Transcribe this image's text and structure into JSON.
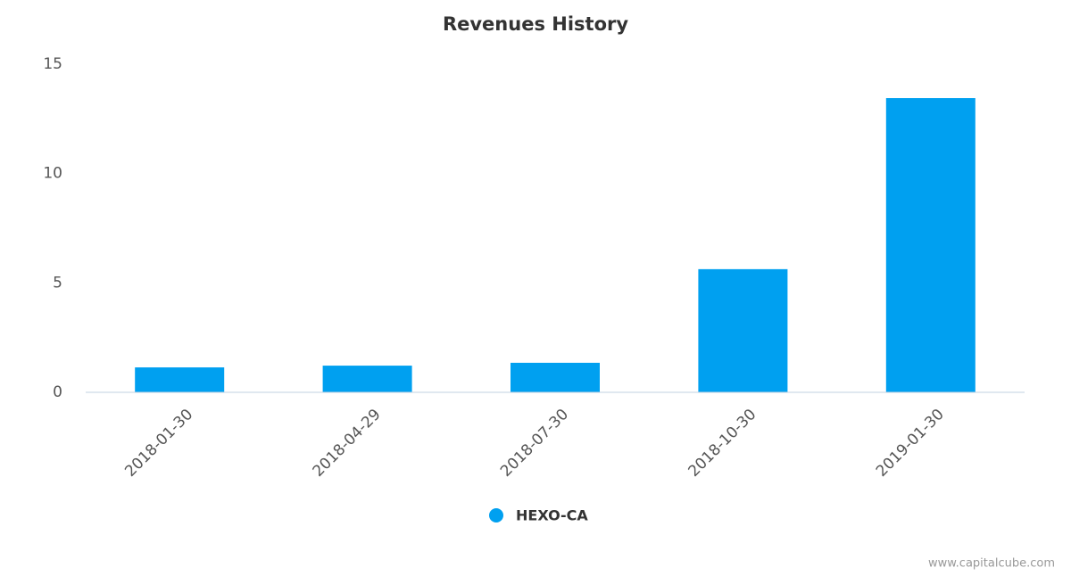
{
  "chart_data": {
    "type": "bar",
    "title": "Revenues History",
    "categories": [
      "2018-01-30",
      "2018-04-29",
      "2018-07-30",
      "2018-10-30",
      "2019-01-30"
    ],
    "series": [
      {
        "name": "HEXO-CA",
        "color": "#00a0f0",
        "values": [
          1.14,
          1.22,
          1.35,
          5.63,
          13.45
        ]
      }
    ],
    "ylim": [
      0,
      15
    ],
    "yticks": [
      0,
      5,
      10,
      15
    ],
    "grid": false,
    "legend": "bottom",
    "credit": "www.capitalcube.com"
  }
}
